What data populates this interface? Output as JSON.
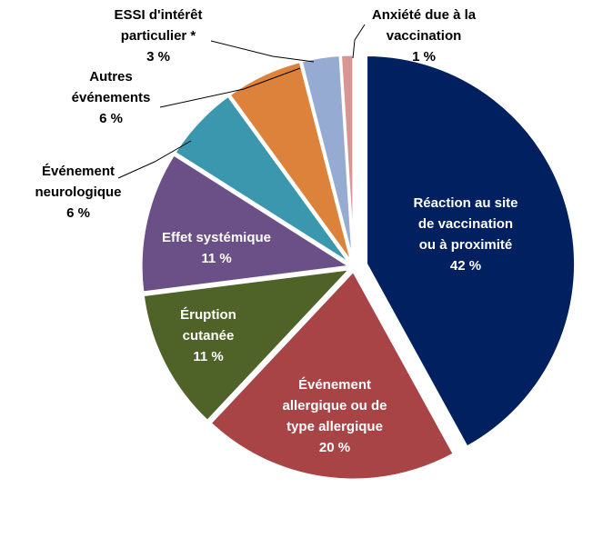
{
  "chart_data": {
    "type": "pie",
    "title": "",
    "slices": [
      {
        "key": "site",
        "label": [
          "Réaction au site",
          "de vaccination",
          "ou à proximité"
        ],
        "pct": "42 %",
        "value": 42,
        "color": "#002060",
        "text_color": "#ffffff",
        "explode": 0
      },
      {
        "key": "allergic",
        "label": [
          "Événement",
          "allergique ou de",
          "type allergique"
        ],
        "pct": "20 %",
        "value": 20,
        "color": "#A84446",
        "text_color": "#ffffff",
        "explode": 0
      },
      {
        "key": "rash",
        "label": [
          "Éruption",
          "cutanée"
        ],
        "pct": "11 %",
        "value": 11,
        "color": "#4F6228",
        "text_color": "#ffffff",
        "explode": 0
      },
      {
        "key": "systemic",
        "label": [
          "Effet systémique"
        ],
        "pct": "11 %",
        "value": 11,
        "color": "#6B5088",
        "text_color": "#ffffff",
        "explode": 0
      },
      {
        "key": "neuro",
        "label": [
          "Événement",
          "neurologique"
        ],
        "pct": "6 %",
        "value": 6,
        "color": "#3B97AE",
        "text_color": "#000000",
        "explode": 0
      },
      {
        "key": "other",
        "label": [
          "Autres",
          "événements"
        ],
        "pct": "6 %",
        "value": 6,
        "color": "#DD823A",
        "text_color": "#000000",
        "explode": 0
      },
      {
        "key": "aesi",
        "label": [
          "ESSI d'intérêt",
          "particulier *"
        ],
        "pct": "3 %",
        "value": 3,
        "color": "#95ABD1",
        "text_color": "#000000",
        "explode": 0
      },
      {
        "key": "anxiety",
        "label": [
          "Anxiété due à la",
          "vaccination"
        ],
        "pct": "1 %",
        "value": 1,
        "color": "#D99594",
        "text_color": "#000000",
        "explode": 0
      }
    ]
  }
}
